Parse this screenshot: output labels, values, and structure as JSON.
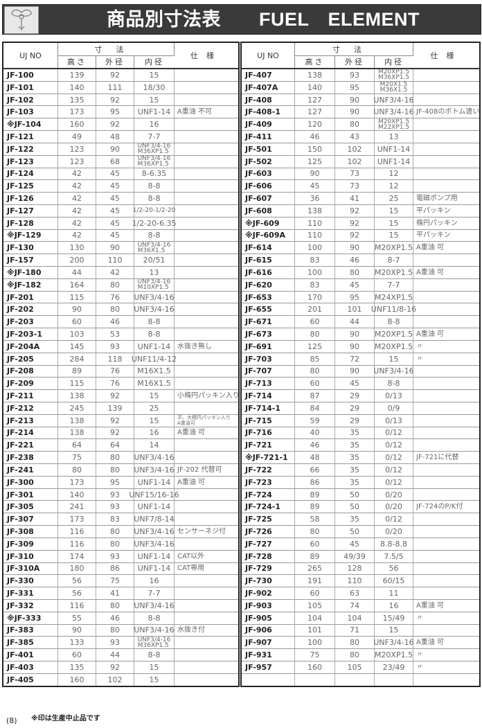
{
  "header": {
    "title": "商品別寸法表　　FUEL　ELEMENT",
    "logo": "logo"
  },
  "columns": {
    "no": "UJ NO",
    "dims": "寸法",
    "height": "高さ",
    "outer": "外径",
    "inner": "内径",
    "spec": "仕様"
  },
  "left_rows": [
    [
      "JF-100",
      "139",
      "92",
      "15",
      ""
    ],
    [
      "JF-101",
      "140",
      "111",
      "18/30",
      ""
    ],
    [
      "JF-102",
      "135",
      "92",
      "15",
      ""
    ],
    [
      "JF-103",
      "173",
      "95",
      "UNF1-14",
      "A重油 不可"
    ],
    [
      "※JF-104",
      "160",
      "92",
      "16",
      ""
    ],
    [
      "JF-121",
      "49",
      "48",
      "7-7",
      ""
    ],
    [
      "JF-122",
      "123",
      "90",
      "UNF3/4-16\nM36XP1.5",
      ""
    ],
    [
      "JF-123",
      "123",
      "68",
      "UNF3/4-16\nM36XP1.5",
      ""
    ],
    [
      "JF-124",
      "42",
      "45",
      "8-6.35",
      ""
    ],
    [
      "JF-125",
      "42",
      "45",
      "8-8",
      ""
    ],
    [
      "JF-126",
      "42",
      "45",
      "8-8",
      ""
    ],
    [
      "JF-127",
      "42",
      "45",
      "1/2-20-1/2-20",
      ""
    ],
    [
      "JF-128",
      "42",
      "45",
      "1/2-20-6.35",
      ""
    ],
    [
      "※JF-129",
      "42",
      "45",
      "8-8",
      ""
    ],
    [
      "JF-130",
      "130",
      "90",
      "UNF3/4-16\nM36X1.5",
      ""
    ],
    [
      "JF-157",
      "200",
      "110",
      "20/51",
      ""
    ],
    [
      "※JF-180",
      "44",
      "42",
      "13",
      ""
    ],
    [
      "※JF-182",
      "164",
      "80",
      "UNF3/4-16\nM10XP1.5",
      ""
    ],
    [
      "JF-201",
      "115",
      "76",
      "UNF3/4-16",
      ""
    ],
    [
      "JF-202",
      "90",
      "80",
      "UNF3/4-16",
      ""
    ],
    [
      "JF-203",
      "60",
      "46",
      "8-8",
      ""
    ],
    [
      "JF-203-1",
      "103",
      "53",
      "8-8",
      ""
    ],
    [
      "JF-204A",
      "145",
      "93",
      "UNF1-14",
      "水抜き無し"
    ],
    [
      "JF-205",
      "284",
      "118",
      "UNF11/4-12",
      ""
    ],
    [
      "JF-208",
      "89",
      "76",
      "M16X1.5",
      ""
    ],
    [
      "JF-209",
      "115",
      "76",
      "M16X1.5",
      ""
    ],
    [
      "JF-211",
      "138",
      "92",
      "15",
      "小楕円パッキン入り"
    ],
    [
      "JF-212",
      "245",
      "139",
      "25",
      ""
    ],
    [
      "JF-213",
      "138",
      "92",
      "15",
      "平、大楕円パッキン入り\nA重油可"
    ],
    [
      "JF-214",
      "138",
      "92",
      "16",
      "A重油 可"
    ],
    [
      "JF-221",
      "64",
      "64",
      "14",
      ""
    ],
    [
      "JF-238",
      "75",
      "80",
      "UNF3/4-16",
      ""
    ],
    [
      "JF-241",
      "80",
      "80",
      "UNF3/4-16",
      "JF-202 代替可"
    ],
    [
      "JF-300",
      "173",
      "95",
      "UNF1-14",
      "A重油 可"
    ],
    [
      "JF-301",
      "140",
      "93",
      "UNF15/16-16",
      ""
    ],
    [
      "JF-305",
      "241",
      "93",
      "UNF1-14",
      ""
    ],
    [
      "JF-307",
      "173",
      "83",
      "UNF7/8-14",
      ""
    ],
    [
      "JF-308",
      "116",
      "80",
      "UNF3/4-16",
      "センサーネジ付"
    ],
    [
      "JF-309",
      "116",
      "80",
      "UNF3/4-16",
      ""
    ],
    [
      "JF-310",
      "174",
      "93",
      "UNF1-14",
      "CAT以外"
    ],
    [
      "JF-310A",
      "180",
      "86",
      "UNF1-14",
      "CAT専用"
    ],
    [
      "JF-330",
      "56",
      "75",
      "16",
      ""
    ],
    [
      "JF-331",
      "56",
      "41",
      "7-7",
      ""
    ],
    [
      "JF-332",
      "116",
      "80",
      "UNF3/4-16",
      ""
    ],
    [
      "※JF-333",
      "55",
      "46",
      "8-8",
      ""
    ],
    [
      "JF-383",
      "90",
      "80",
      "UNF3/4-16",
      "水抜き付"
    ],
    [
      "JF-385",
      "133",
      "93",
      "UNF3/4-16\nM36XP1.5",
      ""
    ],
    [
      "JF-401",
      "60",
      "44",
      "8-8",
      ""
    ],
    [
      "JF-403",
      "135",
      "92",
      "15",
      ""
    ],
    [
      "JF-405",
      "160",
      "102",
      "15",
      ""
    ]
  ],
  "right_rows": [
    [
      "JF-407",
      "138",
      "93",
      "M20XP1.5\nM36XP1.5",
      ""
    ],
    [
      "JF-407A",
      "140",
      "95",
      "M20X1.5\nM36X1.5",
      ""
    ],
    [
      "JF-408",
      "127",
      "90",
      "UNF3/4-16",
      ""
    ],
    [
      "JF-408-1",
      "127",
      "90",
      "UNF3/4-16",
      "JF-408のボトム違い"
    ],
    [
      "JF-409",
      "120",
      "80",
      "M20XP1.5\nM22XP1.5",
      ""
    ],
    [
      "JF-411",
      "46",
      "43",
      "13",
      ""
    ],
    [
      "JF-501",
      "150",
      "102",
      "UNF1-14",
      ""
    ],
    [
      "JF-502",
      "125",
      "102",
      "UNF1-14",
      ""
    ],
    [
      "JF-603",
      "90",
      "73",
      "12",
      ""
    ],
    [
      "JF-606",
      "45",
      "73",
      "12",
      ""
    ],
    [
      "JF-607",
      "36",
      "41",
      "25",
      "電磁ポンプ用"
    ],
    [
      "JF-608",
      "138",
      "92",
      "15",
      "平パッキン"
    ],
    [
      "※JF-609",
      "110",
      "92",
      "15",
      "楕円パッキン"
    ],
    [
      "※JF-609A",
      "110",
      "92",
      "15",
      "平パッキン"
    ],
    [
      "JF-614",
      "100",
      "90",
      "M20XP1.5",
      "A重油 可"
    ],
    [
      "JF-615",
      "83",
      "46",
      "8-7",
      ""
    ],
    [
      "JF-616",
      "100",
      "80",
      "M20XP1.5",
      "A重油 可"
    ],
    [
      "JF-620",
      "83",
      "45",
      "7-7",
      ""
    ],
    [
      "JF-653",
      "170",
      "95",
      "M24XP1.5",
      ""
    ],
    [
      "JF-655",
      "201",
      "101",
      "UNF11/8-16",
      ""
    ],
    [
      "JF-671",
      "60",
      "44",
      "8-8",
      ""
    ],
    [
      "JF-673",
      "80",
      "90",
      "M20XP1.5",
      "A重油 可"
    ],
    [
      "JF-691",
      "125",
      "90",
      "M20XP1.5",
      "〃"
    ],
    [
      "JF-703",
      "85",
      "72",
      "15",
      "〃"
    ],
    [
      "JF-707",
      "80",
      "90",
      "UNF3/4-16",
      ""
    ],
    [
      "JF-713",
      "60",
      "45",
      "8-8",
      ""
    ],
    [
      "JF-714",
      "87",
      "29",
      "0/13",
      ""
    ],
    [
      "JF-714-1",
      "84",
      "29",
      "0/9",
      ""
    ],
    [
      "JF-715",
      "59",
      "29",
      "0/13",
      ""
    ],
    [
      "JF-716",
      "40",
      "35",
      "0/12",
      ""
    ],
    [
      "JF-721",
      "46",
      "35",
      "0/12",
      ""
    ],
    [
      "※JF-721-1",
      "48",
      "35",
      "0/12",
      "JF-721に代替"
    ],
    [
      "JF-722",
      "66",
      "35",
      "0/12",
      ""
    ],
    [
      "JF-723",
      "86",
      "35",
      "0/12",
      ""
    ],
    [
      "JF-724",
      "89",
      "50",
      "0/20",
      ""
    ],
    [
      "JF-724-1",
      "89",
      "50",
      "0/20",
      "JF-724のP/K付"
    ],
    [
      "JF-725",
      "58",
      "35",
      "0/12",
      ""
    ],
    [
      "JF-726",
      "80",
      "50",
      "0/20",
      ""
    ],
    [
      "JF-727",
      "60",
      "45",
      "8.8-8.8",
      ""
    ],
    [
      "JF-728",
      "89",
      "49/39",
      "7.5/5",
      ""
    ],
    [
      "JF-729",
      "265",
      "128",
      "56",
      ""
    ],
    [
      "JF-730",
      "191",
      "110",
      "60/15",
      ""
    ],
    [
      "JF-902",
      "60",
      "63",
      "11",
      ""
    ],
    [
      "JF-903",
      "105",
      "74",
      "16",
      "A重油 可"
    ],
    [
      "JF-905",
      "104",
      "104",
      "15/49",
      "〃"
    ],
    [
      "JF-906",
      "101",
      "71",
      "15",
      ""
    ],
    [
      "JF-907",
      "100",
      "80",
      "UNF3/4-16",
      "A重油 可"
    ],
    [
      "JF-931",
      "75",
      "80",
      "M20XP1.5",
      "〃"
    ],
    [
      "JF-957",
      "160",
      "105",
      "23/49",
      "〃"
    ],
    [
      "",
      "",
      "",
      "",
      ""
    ]
  ],
  "footer": {
    "note": "※印は生産中止品です",
    "page": "(8)"
  }
}
